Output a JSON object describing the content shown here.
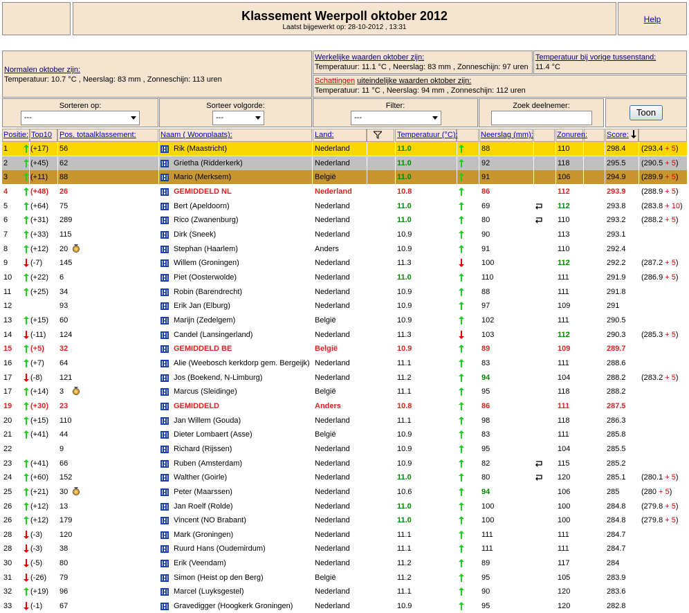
{
  "header": {
    "title": "Klassement Weerpoll oktober 2012",
    "updated": "Laatst bijgewerkt op: 28-10-2012 , 13:31",
    "help": "Help"
  },
  "info": {
    "normal_label": "Normalen oktober zijn:",
    "normal": "Temperatuur: 10.7 °C , Neerslag: 83 mm , Zonneschijn: 113 uren",
    "actual_label": "Werkelijke waarden oktober zijn:",
    "actual": "Temperatuur: 11.1 °C , Neerslag: 83 mm , Zonneschijn: 97 uren",
    "previous_label": "Temperatuur bij vorige tussenstand:",
    "previous": "11.4 °C",
    "estimate_link": "Schattingen",
    "estimate_label": "uiteindelijke waarden oktober zijn:",
    "estimate": "Temperatuur: 11 °C , Neerslag: 94 mm , Zonneschijn: 112 uren"
  },
  "controls": {
    "sort_label": "Sorteren op:",
    "sort_value": "---",
    "order_label": "Sorteer volgorde:",
    "order_value": "---",
    "filter_label": "Filter:",
    "filter_value": "---",
    "search_label": "Zoek deelnemer:",
    "button": "Toon"
  },
  "table": {
    "columns": [
      "Positie:",
      "Top10",
      "Pos. totaalklassement:",
      "Naam ( Woonplaats):",
      "Land:",
      "Temperatuur (°C):",
      "Neerslag (mm):",
      "Zonuren:",
      "Score:"
    ],
    "rows": [
      {
        "p": "1",
        "t": "up",
        "c": "(+17)",
        "tot": "56",
        "n": "Rik (Maastricht)",
        "l": "Nederland",
        "te": "11.0",
        "teh": true,
        "ta": "up",
        "r": "88",
        "s": "110",
        "sc": "298.4",
        "note": [
          "(293.4",
          "+ 5",
          ")"
        ],
        "k": "gold"
      },
      {
        "p": "2",
        "t": "up",
        "c": "(+45)",
        "tot": "62",
        "n": "Grietha (Ridderkerk)",
        "l": "Nederland",
        "te": "11.0",
        "teh": true,
        "ta": "up",
        "r": "92",
        "s": "118",
        "sc": "295.5",
        "note": [
          "(290.5",
          "+ 5",
          ")"
        ],
        "k": "silver"
      },
      {
        "p": "3",
        "t": "up",
        "c": "(+11)",
        "tot": "88",
        "n": "Mario (Merksem)",
        "l": "België",
        "te": "11.0",
        "teh": true,
        "ta": "up",
        "r": "91",
        "s": "106",
        "sc": "294.9",
        "note": [
          "(289.9",
          "+ 5",
          ")"
        ],
        "k": "bronze"
      },
      {
        "p": "4",
        "t": "up",
        "c": "(+48)",
        "tot": "26",
        "n": "GEMIDDELD NL",
        "l": "Nederland",
        "te": "10.8",
        "ta": "up",
        "r": "86",
        "s": "112",
        "sc": "293.9",
        "note": [
          "(288.9",
          "+ 5",
          ")"
        ],
        "k": "avg"
      },
      {
        "p": "5",
        "t": "up",
        "c": "(+64)",
        "tot": "75",
        "n": "Bert (Apeldoorn)",
        "l": "Nederland",
        "te": "11.0",
        "teh": true,
        "ta": "up",
        "r": "69",
        "rf": true,
        "s": "112",
        "sh": true,
        "sc": "293.8",
        "note": [
          "(283.8",
          "+ 10",
          ")"
        ]
      },
      {
        "p": "6",
        "t": "up",
        "c": "(+31)",
        "tot": "289",
        "n": "Rico (Zwanenburg)",
        "l": "Nederland",
        "te": "11.0",
        "teh": true,
        "ta": "up",
        "r": "80",
        "rf": true,
        "s": "110",
        "sc": "293.2",
        "note": [
          "(288.2",
          "+ 5",
          ")"
        ]
      },
      {
        "p": "7",
        "t": "up",
        "c": "(+33)",
        "tot": "115",
        "n": "Dirk (Sneek)",
        "l": "Nederland",
        "te": "10.9",
        "ta": "up",
        "r": "90",
        "s": "113",
        "sc": "293.1"
      },
      {
        "p": "8",
        "t": "up",
        "c": "(+12)",
        "tot": "20",
        "m": true,
        "n": "Stephan (Haarlem)",
        "l": "Anders",
        "te": "10.9",
        "ta": "up",
        "r": "91",
        "s": "110",
        "sc": "292.4"
      },
      {
        "p": "9",
        "t": "down",
        "c": "(-7)",
        "tot": "145",
        "n": "Willem (Groningen)",
        "l": "Nederland",
        "te": "11.3",
        "ta": "down",
        "r": "100",
        "s": "112",
        "sh": true,
        "sc": "292.2",
        "note": [
          "(287.2",
          "+ 5",
          ")"
        ]
      },
      {
        "p": "10",
        "t": "up",
        "c": "(+22)",
        "tot": "6",
        "n": "Piet (Oosterwolde)",
        "l": "Nederland",
        "te": "11.0",
        "teh": true,
        "ta": "up",
        "r": "110",
        "s": "111",
        "sc": "291.9",
        "note": [
          "(286.9",
          "+ 5",
          ")"
        ]
      },
      {
        "p": "11",
        "t": "up",
        "c": "(+25)",
        "tot": "34",
        "n": "Robin (Barendrecht)",
        "l": "Nederland",
        "te": "10.9",
        "ta": "up",
        "r": "88",
        "s": "111",
        "sc": "291.8"
      },
      {
        "p": "12",
        "tot": "93",
        "n": "Erik Jan (Elburg)",
        "l": "Nederland",
        "te": "10.9",
        "ta": "up",
        "r": "97",
        "s": "109",
        "sc": "291"
      },
      {
        "p": "13",
        "t": "up",
        "c": "(+15)",
        "tot": "60",
        "n": "Marijn (Zedelgem)",
        "l": "België",
        "te": "10.9",
        "ta": "up",
        "r": "102",
        "s": "111",
        "sc": "290.5"
      },
      {
        "p": "14",
        "t": "down",
        "c": "(-11)",
        "tot": "124",
        "n": "Candel (Lansingerland)",
        "l": "Nederland",
        "te": "11.3",
        "ta": "down",
        "r": "103",
        "s": "112",
        "sh": true,
        "sc": "290.3",
        "note": [
          "(285.3",
          "+ 5",
          ")"
        ]
      },
      {
        "p": "15",
        "t": "up",
        "c": "(+5)",
        "tot": "32",
        "n": "GEMIDDELD BE",
        "l": "België",
        "te": "10.9",
        "ta": "up",
        "r": "89",
        "s": "109",
        "sc": "289.7",
        "k": "avg"
      },
      {
        "p": "16",
        "t": "up",
        "c": "(+7)",
        "tot": "64",
        "n": "Alie (Weebosch kerkdorp gem. Bergeijk)",
        "l": "Nederland",
        "te": "11.1",
        "ta": "up",
        "r": "83",
        "s": "111",
        "sc": "288.6"
      },
      {
        "p": "17",
        "t": "down",
        "c": "(-8)",
        "tot": "121",
        "n": "Jos (Boekend, N-Limburg)",
        "l": "Nederland",
        "te": "11.2",
        "ta": "up",
        "r": "94",
        "rh": true,
        "s": "104",
        "sc": "288.2",
        "note": [
          "(283.2",
          "+ 5",
          ")"
        ]
      },
      {
        "p": "17",
        "t": "up",
        "c": "(+14)",
        "tot": "3",
        "m": true,
        "n": "Marcus (Sleidinge)",
        "l": "België",
        "te": "11.1",
        "ta": "up",
        "r": "95",
        "s": "118",
        "sc": "288.2"
      },
      {
        "p": "19",
        "t": "up",
        "c": "(+30)",
        "tot": "23",
        "n": "GEMIDDELD",
        "l": "Anders",
        "te": "10.8",
        "ta": "up",
        "r": "86",
        "s": "111",
        "sc": "287.5",
        "k": "avg"
      },
      {
        "p": "20",
        "t": "up",
        "c": "(+15)",
        "tot": "110",
        "n": "Jan Willem (Gouda)",
        "l": "Nederland",
        "te": "11.1",
        "ta": "up",
        "r": "98",
        "s": "118",
        "sc": "286.3"
      },
      {
        "p": "21",
        "t": "up",
        "c": "(+41)",
        "tot": "44",
        "n": "Dieter Lombaert (Asse)",
        "l": "België",
        "te": "10.9",
        "ta": "up",
        "r": "83",
        "s": "111",
        "sc": "285.8"
      },
      {
        "p": "22",
        "tot": "9",
        "n": "Richard (Rijssen)",
        "l": "Nederland",
        "te": "10.9",
        "ta": "up",
        "r": "95",
        "s": "104",
        "sc": "285.5"
      },
      {
        "p": "23",
        "t": "up",
        "c": "(+41)",
        "tot": "66",
        "n": "Ruben (Amsterdam)",
        "l": "Nederland",
        "te": "10.9",
        "ta": "up",
        "r": "82",
        "rf": true,
        "s": "115",
        "sc": "285.2"
      },
      {
        "p": "24",
        "t": "up",
        "c": "(+60)",
        "tot": "152",
        "n": "Walther (Goirle)",
        "l": "Nederland",
        "te": "11.0",
        "teh": true,
        "ta": "up",
        "r": "80",
        "rf": true,
        "s": "120",
        "sc": "285.1",
        "note": [
          "(280.1",
          "+ 5",
          ")"
        ]
      },
      {
        "p": "25",
        "t": "up",
        "c": "(+21)",
        "tot": "30",
        "m": true,
        "n": "Peter (Maarssen)",
        "l": "Nederland",
        "te": "10.6",
        "ta": "up",
        "r": "94",
        "rh": true,
        "s": "106",
        "sc": "285",
        "note": [
          "(280",
          "+ 5",
          ")"
        ]
      },
      {
        "p": "26",
        "t": "up",
        "c": "(+12)",
        "tot": "13",
        "n": "Jan Roelf (Rolde)",
        "l": "Nederland",
        "te": "11.0",
        "teh": true,
        "ta": "up",
        "r": "100",
        "s": "100",
        "sc": "284.8",
        "note": [
          "(279.8",
          "+ 5",
          ")"
        ]
      },
      {
        "p": "26",
        "t": "up",
        "c": "(+12)",
        "tot": "179",
        "n": "Vincent (NO Brabant)",
        "l": "Nederland",
        "te": "11.0",
        "teh": true,
        "ta": "up",
        "r": "100",
        "s": "100",
        "sc": "284.8",
        "note": [
          "(279.8",
          "+ 5",
          ")"
        ]
      },
      {
        "p": "28",
        "t": "down",
        "c": "(-3)",
        "tot": "120",
        "n": "Mark (Groningen)",
        "l": "Nederland",
        "te": "11.1",
        "ta": "up",
        "r": "111",
        "s": "111",
        "sc": "284.7"
      },
      {
        "p": "28",
        "t": "down",
        "c": "(-3)",
        "tot": "38",
        "n": "Ruurd Hans (Oudemirdum)",
        "l": "Nederland",
        "te": "11.1",
        "ta": "up",
        "r": "111",
        "s": "111",
        "sc": "284.7"
      },
      {
        "p": "30",
        "t": "down",
        "c": "(-5)",
        "tot": "80",
        "n": "Erik (Veendam)",
        "l": "Nederland",
        "te": "11.2",
        "ta": "up",
        "r": "89",
        "s": "117",
        "sc": "284"
      },
      {
        "p": "31",
        "t": "down",
        "c": "(-26)",
        "tot": "79",
        "n": "Simon (Heist op den Berg)",
        "l": "België",
        "te": "11.2",
        "ta": "up",
        "r": "95",
        "s": "105",
        "sc": "283.9"
      },
      {
        "p": "32",
        "t": "up",
        "c": "(+19)",
        "tot": "96",
        "n": "Marcel (Luyksgestel)",
        "l": "Nederland",
        "te": "11.1",
        "ta": "up",
        "r": "90",
        "s": "120",
        "sc": "283.6"
      },
      {
        "p": "33",
        "t": "down",
        "c": "(-1)",
        "tot": "67",
        "n": "Gravedigger (Hoogkerk Groningen)",
        "l": "Nederland",
        "te": "10.9",
        "ta": "up",
        "r": "95",
        "s": "120",
        "sc": "282.8"
      }
    ]
  }
}
